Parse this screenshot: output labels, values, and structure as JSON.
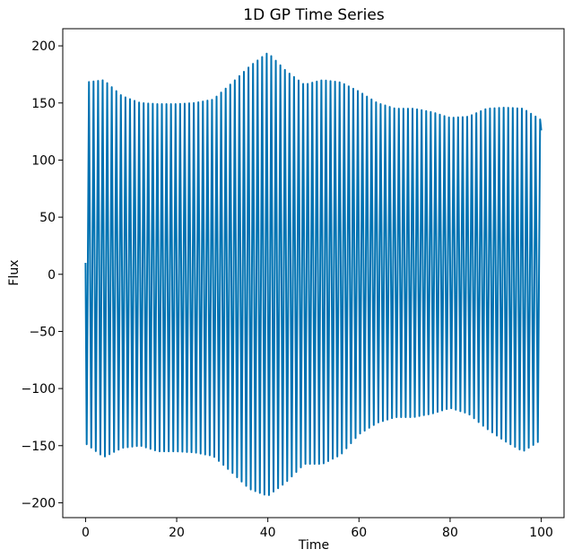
{
  "chart_data": {
    "type": "line",
    "title": "1D GP Time Series",
    "xlabel": "Time",
    "ylabel": "Flux",
    "xlim": [
      -5,
      105
    ],
    "ylim": [
      -213,
      215
    ],
    "x_ticks": [
      0,
      20,
      40,
      60,
      80,
      100
    ],
    "y_ticks": [
      -200,
      -150,
      -100,
      -50,
      0,
      50,
      100,
      150,
      200
    ],
    "x_tick_labels": [
      "0",
      "20",
      "40",
      "60",
      "80",
      "100"
    ],
    "y_tick_labels": [
      "−200",
      "−150",
      "−100",
      "−50",
      "0",
      "50",
      "100",
      "150",
      "200"
    ],
    "grid": false,
    "legend": "none",
    "series": [
      {
        "color": "#0072b2",
        "oscillation_period": 1.0,
        "x": [
          0,
          4,
          8,
          12,
          16,
          20,
          24,
          28,
          32,
          36,
          40,
          44,
          48,
          52,
          56,
          60,
          64,
          68,
          72,
          76,
          80,
          84,
          88,
          92,
          96,
          100
        ],
        "amplitude": [
          158,
          165,
          154,
          150,
          152,
          152,
          153,
          156,
          170,
          185,
          194,
          180,
          166,
          168,
          163,
          150,
          140,
          135,
          135,
          132,
          127,
          130,
          140,
          146,
          150,
          140
        ],
        "offset": [
          10,
          5,
          2,
          0,
          -3,
          -3,
          -3,
          -3,
          -3,
          -3,
          0,
          -2,
          0,
          2,
          5,
          10,
          10,
          10,
          10,
          10,
          10,
          8,
          5,
          0,
          -5,
          -5
        ],
        "start_value": 10,
        "end_value": 126
      }
    ]
  }
}
